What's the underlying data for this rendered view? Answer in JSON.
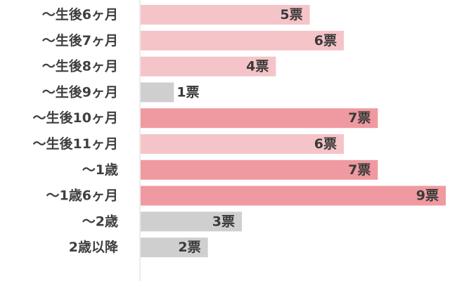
{
  "chart_data": {
    "type": "bar",
    "orientation": "horizontal",
    "categories": [
      "～生後6ヶ月",
      "～生後7ヶ月",
      "～生後8ヶ月",
      "～生後9ヶ月",
      "～生後10ヶ月",
      "～生後11ヶ月",
      "～1歳",
      "～1歳6ヶ月",
      "～2歳",
      "2歳以降"
    ],
    "values": [
      5,
      6,
      4,
      1,
      7,
      6,
      7,
      9,
      3,
      2
    ],
    "value_labels": [
      "5票",
      "6票",
      "4票",
      "1票",
      "7票",
      "6票",
      "7票",
      "9票",
      "3票",
      "2票"
    ],
    "bar_colors": [
      "#f5c4c8",
      "#f5c4c8",
      "#f5c4c8",
      "#cfcfcf",
      "#ef9aa0",
      "#f5c4c8",
      "#ef9aa0",
      "#ef9aa0",
      "#cfcfcf",
      "#cfcfcf"
    ],
    "xlim": [
      0,
      9
    ],
    "grid": false,
    "legend": "none",
    "axis_color": "#d9d9d9"
  }
}
